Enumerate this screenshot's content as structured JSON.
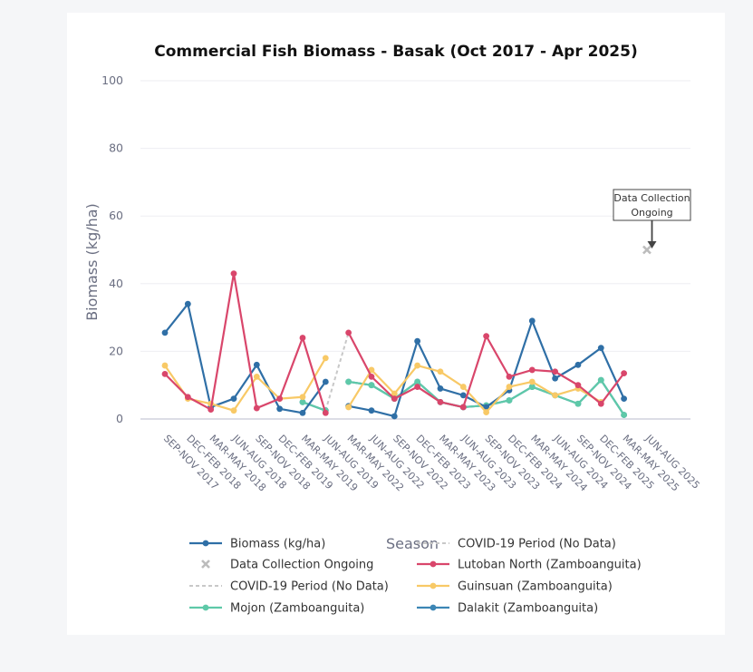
{
  "chart_data": {
    "type": "line",
    "title": "Commercial Fish Biomass - Basak (Oct 2017 - Apr 2025)",
    "xlabel": "Season",
    "ylabel": "Biomass (kg/ha)",
    "ylim": [
      0,
      100
    ],
    "yticks": [
      0,
      20,
      40,
      60,
      80,
      100
    ],
    "grid": true,
    "categories": [
      "SEP-NOV 2017",
      "DEC-FEB 2018",
      "MAR-MAY 2018",
      "JUN-AUG 2018",
      "SEP-NOV 2018",
      "DEC-FEB 2019",
      "MAR-MAY 2019",
      "JUN-AUG 2019",
      "MAR-MAY 2022",
      "JUN-AUG 2022",
      "SEP-NOV 2022",
      "DEC-FEB 2023",
      "MAR-MAY 2023",
      "JUN-AUG 2023",
      "SEP-NOV 2023",
      "DEC-FEB 2024",
      "MAR-MAY 2024",
      "JUN-AUG 2024",
      "SEP-NOV 2024",
      "DEC-FEB 2025",
      "MAR-MAY 2025",
      "JUN-AUG 2025"
    ],
    "series": [
      {
        "name": "Biomass (kg/ha)",
        "color": "#2f6fa6",
        "values": [
          25.5,
          34,
          3.5,
          6,
          16,
          3,
          1.8,
          11,
          3.8,
          2.5,
          0.8,
          23,
          9,
          7,
          3.5,
          8.5,
          29,
          12,
          16,
          21,
          6,
          null
        ]
      },
      {
        "name": "Lutoban North (Zamboanguita)",
        "color": "#d9466b",
        "values": [
          13.3,
          6.5,
          2.8,
          43,
          3.2,
          6,
          24,
          1.8,
          25.5,
          12.5,
          6,
          9.5,
          5,
          3.5,
          24.5,
          12.5,
          14.5,
          14,
          10,
          4.5,
          13.5,
          null
        ]
      },
      {
        "name": "Guinsuan (Zamboanguita)",
        "color": "#f8c966",
        "values": [
          15.8,
          6,
          4.5,
          2.5,
          12.5,
          6,
          6.5,
          18,
          3.5,
          14.5,
          7.5,
          15.8,
          14,
          9.5,
          2,
          9.5,
          11,
          7,
          9,
          5,
          null,
          null
        ]
      },
      {
        "name": "Mojon (Zamboanguita)",
        "color": "#5ec9a8",
        "values": [
          null,
          null,
          null,
          null,
          null,
          null,
          5,
          2.5,
          11,
          10,
          6,
          11,
          5,
          3.5,
          4,
          5.5,
          9.5,
          7,
          4.5,
          11.5,
          1.2,
          null
        ]
      },
      {
        "name": "Dalakit (Zamboanguita)",
        "color": "#3c86b5",
        "values": [
          null,
          null,
          null,
          null,
          null,
          null,
          5,
          2.5,
          11,
          10,
          6,
          11,
          5,
          3.5,
          4,
          5.5,
          9.5,
          7,
          4.5,
          11.5,
          1.2,
          null
        ]
      }
    ],
    "covid_gap": {
      "name": "COVID-19 Period (No Data)",
      "color": "#c8c8c8",
      "from": "JUN-AUG 2019",
      "to": "MAR-MAY 2022",
      "values": [
        2.5,
        25.5
      ]
    },
    "ongoing_marker": {
      "name": "Data Collection Ongoing",
      "x": "JUN-AUG 2025",
      "y": 50,
      "color": "#bcbcbc"
    },
    "annotation": {
      "line1": "Data Collection",
      "line2": "Ongoing"
    },
    "legend": [
      {
        "label": "Biomass (kg/ha)",
        "style": "line-marker",
        "color": "#2f6fa6"
      },
      {
        "label": "COVID-19 Period (No Data)",
        "style": "dash",
        "color": "#c8c8c8"
      },
      {
        "label": "Data Collection Ongoing",
        "style": "x",
        "color": "#bcbcbc"
      },
      {
        "label": "Lutoban North (Zamboanguita)",
        "style": "line-marker",
        "color": "#d9466b"
      },
      {
        "label": "COVID-19 Period (No Data)",
        "style": "dash",
        "color": "#c8c8c8"
      },
      {
        "label": "Guinsuan (Zamboanguita)",
        "style": "line-marker",
        "color": "#f8c966"
      },
      {
        "label": "Mojon (Zamboanguita)",
        "style": "line-marker",
        "color": "#5ec9a8"
      },
      {
        "label": "Dalakit (Zamboanguita)",
        "style": "line-marker",
        "color": "#3c86b5"
      }
    ],
    "legend_placement": "bottom"
  }
}
